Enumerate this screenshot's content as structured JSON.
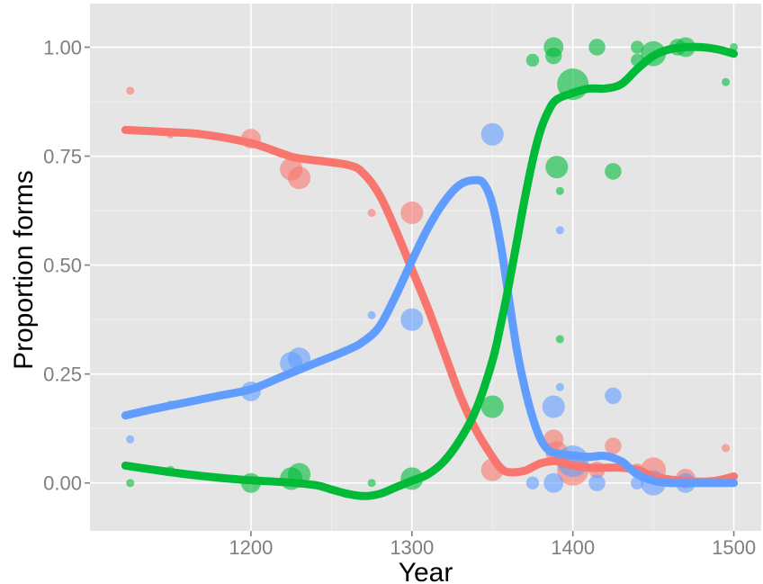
{
  "chart_data": {
    "type": "scatter",
    "xlabel": "Year",
    "ylabel": "Proportion forms",
    "xlim": [
      1100,
      1517
    ],
    "ylim": [
      -0.11,
      1.1
    ],
    "x_ticks": [
      1200,
      1300,
      1400,
      1500
    ],
    "x_tick_labels": [
      "1200",
      "1300",
      "1400",
      "1500"
    ],
    "y_ticks": [
      0,
      0.25,
      0.5,
      0.75,
      1.0
    ],
    "y_tick_labels": [
      "0.00",
      "0.25",
      "0.50",
      "0.75",
      "1.00"
    ],
    "grid": true,
    "legend": "none",
    "panel_background": "#e5e5e5",
    "series": [
      {
        "color": "#f8766d",
        "points": [
          {
            "x": 1125,
            "y": 0.9,
            "s": 1
          },
          {
            "x": 1150,
            "y": 0.8,
            "s": 1
          },
          {
            "x": 1200,
            "y": 0.79,
            "s": 4
          },
          {
            "x": 1225,
            "y": 0.72,
            "s": 5
          },
          {
            "x": 1230,
            "y": 0.7,
            "s": 5
          },
          {
            "x": 1275,
            "y": 0.62,
            "s": 1
          },
          {
            "x": 1300,
            "y": 0.62,
            "s": 5
          },
          {
            "x": 1350,
            "y": 0.03,
            "s": 5
          },
          {
            "x": 1388,
            "y": 0.1,
            "s": 4
          },
          {
            "x": 1390,
            "y": 0.07,
            "s": 5
          },
          {
            "x": 1393,
            "y": 0.05,
            "s": 2
          },
          {
            "x": 1400,
            "y": 0.03,
            "s": 9
          },
          {
            "x": 1415,
            "y": 0.03,
            "s": 3
          },
          {
            "x": 1425,
            "y": 0.085,
            "s": 3
          },
          {
            "x": 1440,
            "y": 0.03,
            "s": 2
          },
          {
            "x": 1450,
            "y": 0.03,
            "s": 6
          },
          {
            "x": 1470,
            "y": 0.01,
            "s": 4
          },
          {
            "x": 1495,
            "y": 0.08,
            "s": 1
          }
        ],
        "smooth": [
          [
            1122,
            0.81
          ],
          [
            1150,
            0.805
          ],
          [
            1170,
            0.8
          ],
          [
            1200,
            0.78
          ],
          [
            1220,
            0.755
          ],
          [
            1230,
            0.745
          ],
          [
            1260,
            0.73
          ],
          [
            1270,
            0.71
          ],
          [
            1280,
            0.66
          ],
          [
            1290,
            0.58
          ],
          [
            1300,
            0.49
          ],
          [
            1310,
            0.4
          ],
          [
            1320,
            0.3
          ],
          [
            1330,
            0.2
          ],
          [
            1340,
            0.12
          ],
          [
            1350,
            0.06
          ],
          [
            1355,
            0.035
          ],
          [
            1360,
            0.025
          ],
          [
            1370,
            0.028
          ],
          [
            1380,
            0.045
          ],
          [
            1390,
            0.05
          ],
          [
            1400,
            0.04
          ],
          [
            1410,
            0.035
          ],
          [
            1420,
            0.035
          ],
          [
            1430,
            0.035
          ],
          [
            1440,
            0.03
          ],
          [
            1450,
            0.015
          ],
          [
            1460,
            0.008
          ],
          [
            1470,
            0.005
          ],
          [
            1480,
            0.003
          ],
          [
            1490,
            0.006
          ],
          [
            1500,
            0.015
          ]
        ]
      },
      {
        "color": "#619cff",
        "points": [
          {
            "x": 1125,
            "y": 0.1,
            "s": 1
          },
          {
            "x": 1150,
            "y": 0.18,
            "s": 1
          },
          {
            "x": 1200,
            "y": 0.21,
            "s": 4
          },
          {
            "x": 1225,
            "y": 0.275,
            "s": 5
          },
          {
            "x": 1230,
            "y": 0.285,
            "s": 5
          },
          {
            "x": 1275,
            "y": 0.385,
            "s": 1
          },
          {
            "x": 1300,
            "y": 0.375,
            "s": 5
          },
          {
            "x": 1350,
            "y": 0.8,
            "s": 5
          },
          {
            "x": 1375,
            "y": 0.0,
            "s": 2
          },
          {
            "x": 1388,
            "y": 0.175,
            "s": 5
          },
          {
            "x": 1388,
            "y": 0.0,
            "s": 4
          },
          {
            "x": 1392,
            "y": 0.58,
            "s": 1
          },
          {
            "x": 1392,
            "y": 0.22,
            "s": 1
          },
          {
            "x": 1400,
            "y": 0.05,
            "s": 9
          },
          {
            "x": 1415,
            "y": 0.0,
            "s": 3
          },
          {
            "x": 1425,
            "y": 0.2,
            "s": 3
          },
          {
            "x": 1440,
            "y": 0.0,
            "s": 2
          },
          {
            "x": 1450,
            "y": 0.0,
            "s": 6
          },
          {
            "x": 1470,
            "y": 0.0,
            "s": 4
          },
          {
            "x": 1500,
            "y": 0.0,
            "s": 1
          }
        ],
        "smooth": [
          [
            1122,
            0.155
          ],
          [
            1140,
            0.17
          ],
          [
            1160,
            0.185
          ],
          [
            1180,
            0.2
          ],
          [
            1200,
            0.215
          ],
          [
            1220,
            0.245
          ],
          [
            1240,
            0.275
          ],
          [
            1260,
            0.305
          ],
          [
            1270,
            0.325
          ],
          [
            1280,
            0.36
          ],
          [
            1290,
            0.43
          ],
          [
            1300,
            0.51
          ],
          [
            1310,
            0.585
          ],
          [
            1320,
            0.645
          ],
          [
            1330,
            0.685
          ],
          [
            1340,
            0.695
          ],
          [
            1345,
            0.685
          ],
          [
            1350,
            0.64
          ],
          [
            1355,
            0.55
          ],
          [
            1360,
            0.43
          ],
          [
            1365,
            0.31
          ],
          [
            1370,
            0.22
          ],
          [
            1375,
            0.15
          ],
          [
            1380,
            0.1
          ],
          [
            1385,
            0.075
          ],
          [
            1390,
            0.068
          ],
          [
            1400,
            0.063
          ],
          [
            1410,
            0.06
          ],
          [
            1420,
            0.062
          ],
          [
            1430,
            0.05
          ],
          [
            1435,
            0.035
          ],
          [
            1440,
            0.02
          ],
          [
            1450,
            0.005
          ],
          [
            1460,
            0.0
          ],
          [
            1470,
            0.0
          ],
          [
            1480,
            0.0
          ],
          [
            1490,
            0.0
          ],
          [
            1500,
            0.0
          ]
        ]
      },
      {
        "color": "#00ba38",
        "points": [
          {
            "x": 1125,
            "y": 0.0,
            "s": 1
          },
          {
            "x": 1150,
            "y": 0.03,
            "s": 1
          },
          {
            "x": 1200,
            "y": 0.0,
            "s": 4
          },
          {
            "x": 1225,
            "y": 0.01,
            "s": 5
          },
          {
            "x": 1230,
            "y": 0.02,
            "s": 5
          },
          {
            "x": 1275,
            "y": 0.0,
            "s": 1
          },
          {
            "x": 1300,
            "y": 0.01,
            "s": 5
          },
          {
            "x": 1350,
            "y": 0.175,
            "s": 5
          },
          {
            "x": 1375,
            "y": 0.97,
            "s": 2
          },
          {
            "x": 1388,
            "y": 1.0,
            "s": 4
          },
          {
            "x": 1388,
            "y": 0.98,
            "s": 3
          },
          {
            "x": 1390,
            "y": 0.725,
            "s": 5
          },
          {
            "x": 1392,
            "y": 0.67,
            "s": 1
          },
          {
            "x": 1392,
            "y": 0.33,
            "s": 1
          },
          {
            "x": 1400,
            "y": 0.915,
            "s": 9
          },
          {
            "x": 1415,
            "y": 1.0,
            "s": 3
          },
          {
            "x": 1425,
            "y": 0.715,
            "s": 3
          },
          {
            "x": 1440,
            "y": 1.0,
            "s": 2
          },
          {
            "x": 1440,
            "y": 0.97,
            "s": 2
          },
          {
            "x": 1450,
            "y": 0.985,
            "s": 6
          },
          {
            "x": 1465,
            "y": 1.0,
            "s": 3
          },
          {
            "x": 1470,
            "y": 1.0,
            "s": 4
          },
          {
            "x": 1495,
            "y": 0.92,
            "s": 1
          },
          {
            "x": 1500,
            "y": 1.0,
            "s": 1
          }
        ],
        "smooth": [
          [
            1122,
            0.04
          ],
          [
            1140,
            0.03
          ],
          [
            1160,
            0.02
          ],
          [
            1180,
            0.012
          ],
          [
            1200,
            0.006
          ],
          [
            1220,
            0.002
          ],
          [
            1240,
            -0.005
          ],
          [
            1250,
            -0.015
          ],
          [
            1260,
            -0.025
          ],
          [
            1270,
            -0.03
          ],
          [
            1280,
            -0.025
          ],
          [
            1290,
            -0.01
          ],
          [
            1300,
            0.005
          ],
          [
            1310,
            0.02
          ],
          [
            1320,
            0.05
          ],
          [
            1330,
            0.1
          ],
          [
            1340,
            0.17
          ],
          [
            1350,
            0.28
          ],
          [
            1355,
            0.36
          ],
          [
            1360,
            0.45
          ],
          [
            1365,
            0.55
          ],
          [
            1370,
            0.65
          ],
          [
            1375,
            0.74
          ],
          [
            1380,
            0.81
          ],
          [
            1385,
            0.855
          ],
          [
            1390,
            0.88
          ],
          [
            1400,
            0.895
          ],
          [
            1410,
            0.905
          ],
          [
            1420,
            0.905
          ],
          [
            1430,
            0.915
          ],
          [
            1440,
            0.95
          ],
          [
            1450,
            0.98
          ],
          [
            1460,
            0.995
          ],
          [
            1470,
            1.0
          ],
          [
            1480,
            1.0
          ],
          [
            1490,
            0.995
          ],
          [
            1500,
            0.985
          ]
        ]
      }
    ]
  }
}
